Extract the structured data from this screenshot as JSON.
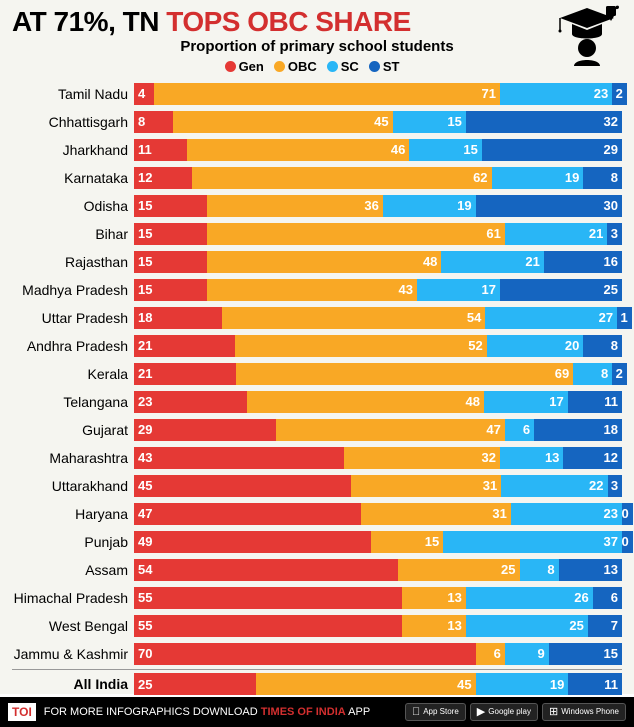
{
  "title_prefix": "AT 71%, TN ",
  "title_highlight": "TOPS OBC SHARE",
  "subtitle": "Proportion of primary school students",
  "colors": {
    "gen": "#e53935",
    "obc": "#f9a825",
    "sc": "#29b6f6",
    "st": "#1565c0",
    "bg": "#f5f5f0"
  },
  "legend": [
    {
      "label": "Gen",
      "color_key": "gen"
    },
    {
      "label": "OBC",
      "color_key": "obc"
    },
    {
      "label": "SC",
      "color_key": "sc"
    },
    {
      "label": "ST",
      "color_key": "st"
    }
  ],
  "rows": [
    {
      "label": "Tamil Nadu",
      "v": [
        4,
        71,
        23,
        2
      ]
    },
    {
      "label": "Chhattisgarh",
      "v": [
        8,
        45,
        15,
        32
      ]
    },
    {
      "label": "Jharkhand",
      "v": [
        11,
        46,
        15,
        29
      ]
    },
    {
      "label": "Karnataka",
      "v": [
        12,
        62,
        19,
        8
      ]
    },
    {
      "label": "Odisha",
      "v": [
        15,
        36,
        19,
        30
      ]
    },
    {
      "label": "Bihar",
      "v": [
        15,
        61,
        21,
        3
      ]
    },
    {
      "label": "Rajasthan",
      "v": [
        15,
        48,
        21,
        16
      ]
    },
    {
      "label": "Madhya Pradesh",
      "v": [
        15,
        43,
        17,
        25
      ]
    },
    {
      "label": "Uttar Pradesh",
      "v": [
        18,
        54,
        27,
        1
      ]
    },
    {
      "label": "Andhra Pradesh",
      "v": [
        21,
        52,
        20,
        8
      ]
    },
    {
      "label": "Kerala",
      "v": [
        21,
        69,
        8,
        2
      ]
    },
    {
      "label": "Telangana",
      "v": [
        23,
        48,
        17,
        11
      ]
    },
    {
      "label": "Gujarat",
      "v": [
        29,
        47,
        6,
        18
      ]
    },
    {
      "label": "Maharashtra",
      "v": [
        43,
        32,
        13,
        12
      ]
    },
    {
      "label": "Uttarakhand",
      "v": [
        45,
        31,
        22,
        3
      ]
    },
    {
      "label": "Haryana",
      "v": [
        47,
        31,
        23,
        0
      ]
    },
    {
      "label": "Punjab",
      "v": [
        49,
        15,
        37,
        0
      ]
    },
    {
      "label": "Assam",
      "v": [
        54,
        25,
        8,
        13
      ]
    },
    {
      "label": "Himachal Pradesh",
      "v": [
        55,
        13,
        26,
        6
      ]
    },
    {
      "label": "West Bengal",
      "v": [
        55,
        13,
        25,
        7
      ]
    },
    {
      "label": "Jammu & Kashmir",
      "v": [
        70,
        6,
        9,
        15
      ]
    }
  ],
  "total": {
    "label": "All India",
    "v": [
      25,
      45,
      19,
      11
    ]
  },
  "footer": {
    "toi": "TOI",
    "text_a": "FOR MORE  INFOGRAPHICS DOWNLOAD ",
    "text_b": "TIMES OF INDIA",
    "text_c": " APP",
    "stores": [
      "App Store",
      "Google play",
      "Windows Phone"
    ]
  }
}
